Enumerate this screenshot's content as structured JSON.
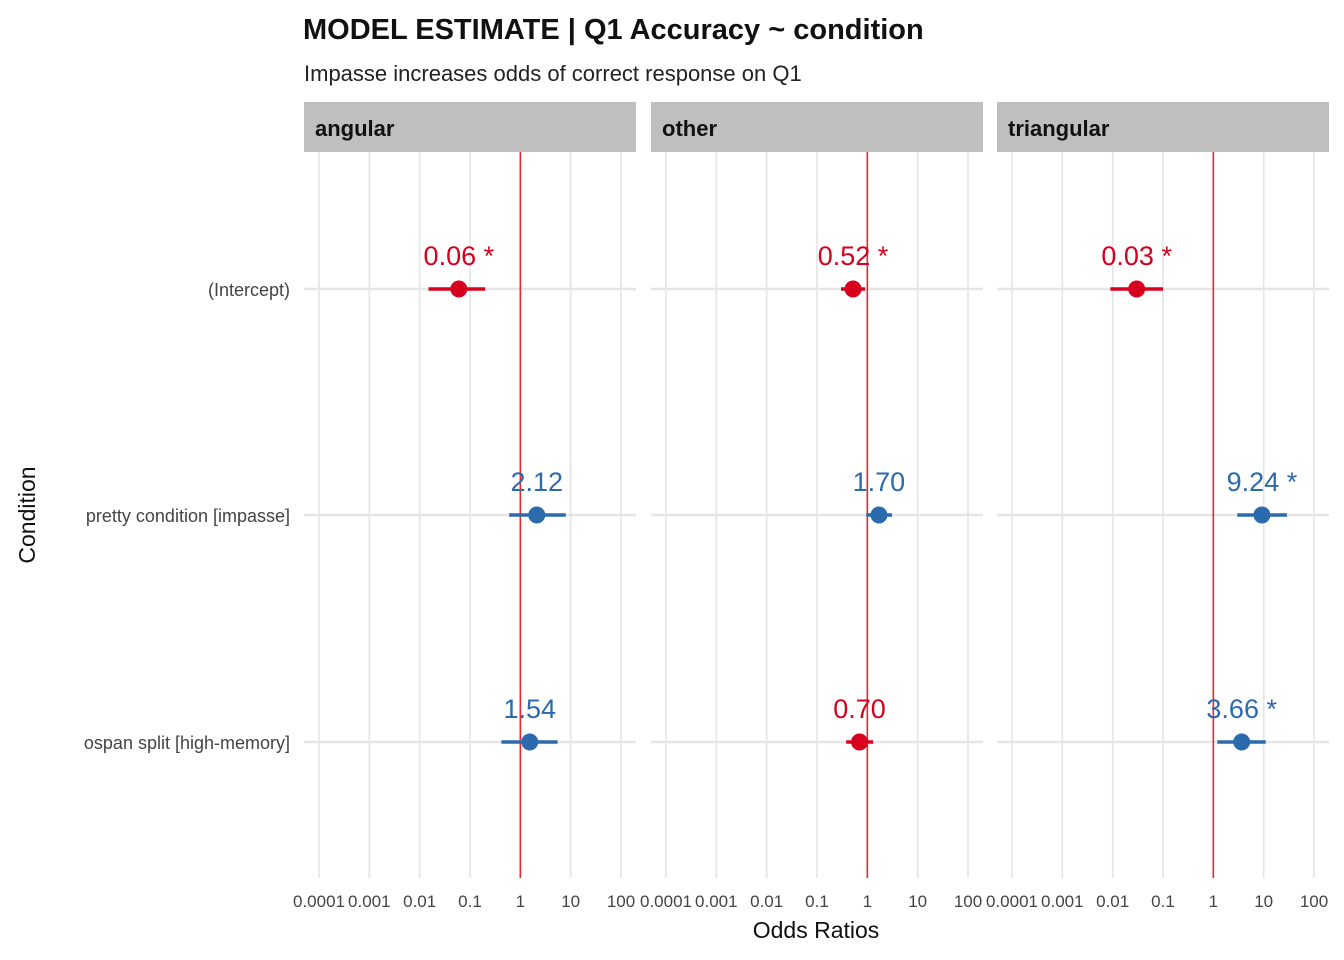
{
  "chart_data": {
    "type": "scatter",
    "title": "MODEL ESTIMATE  | Q1 Accuracy ~ condition",
    "subtitle": "Impasse increases odds of correct response on Q1",
    "xlabel": "Odds Ratios",
    "ylabel": "Condition",
    "x_scale": "log10",
    "xlim": [
      0.0001,
      100
    ],
    "x_ticks": [
      "0.0001",
      "0.001",
      "0.01",
      "0.1",
      "1",
      "10",
      "100"
    ],
    "reference_line": 1,
    "terms": [
      "(Intercept)",
      "pretty condition [impasse]",
      "ospan split [high-memory]"
    ],
    "grid": true,
    "colors": {
      "below_one": "#d7001d",
      "above_one": "#2b6aad",
      "reference": "#e8282f",
      "strip": "#bfbfbf",
      "grid": "#e5e5e5"
    },
    "panels": [
      {
        "name": "angular",
        "estimates": [
          {
            "term": "(Intercept)",
            "value": 0.06,
            "ci": [
              0.015,
              0.2
            ],
            "label": "0.06 *"
          },
          {
            "term": "pretty condition [impasse]",
            "value": 2.12,
            "ci": [
              0.6,
              8
            ],
            "label": "2.12"
          },
          {
            "term": "ospan split [high-memory]",
            "value": 1.54,
            "ci": [
              0.42,
              5.5
            ],
            "label": "1.54"
          }
        ]
      },
      {
        "name": "other",
        "estimates": [
          {
            "term": "(Intercept)",
            "value": 0.52,
            "ci": [
              0.3,
              0.9
            ],
            "label": "0.52 *"
          },
          {
            "term": "pretty condition [impasse]",
            "value": 1.7,
            "ci": [
              0.95,
              3.1
            ],
            "label": "1.70"
          },
          {
            "term": "ospan split [high-memory]",
            "value": 0.7,
            "ci": [
              0.38,
              1.3
            ],
            "label": "0.70"
          }
        ]
      },
      {
        "name": "triangular",
        "estimates": [
          {
            "term": "(Intercept)",
            "value": 0.03,
            "ci": [
              0.009,
              0.1
            ],
            "label": "0.03 *"
          },
          {
            "term": "pretty condition [impasse]",
            "value": 9.24,
            "ci": [
              3,
              29
            ],
            "label": "9.24 *"
          },
          {
            "term": "ospan split [high-memory]",
            "value": 3.66,
            "ci": [
              1.2,
              11
            ],
            "label": "3.66 *"
          }
        ]
      }
    ]
  }
}
